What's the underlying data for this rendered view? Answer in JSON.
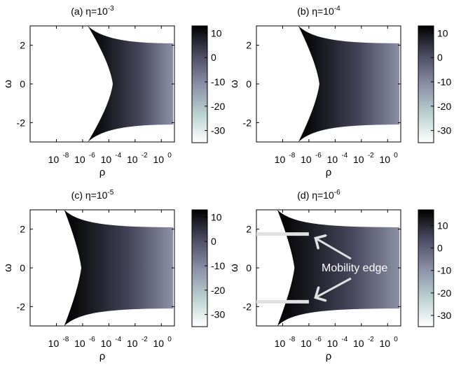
{
  "chart_data": [
    {
      "type": "heatmap",
      "panel_label": "(a)",
      "eta": "10",
      "eta_exp": "-3",
      "xlabel": "ρ",
      "ylabel": "ω",
      "x_scale": "log",
      "xlim": [
        1e-10,
        10
      ],
      "ylim": [
        -3,
        3
      ],
      "x_ticks": [
        {
          "base": "10",
          "exp": "-8",
          "value": 1e-08
        },
        {
          "base": "10",
          "exp": "-6",
          "value": 1e-06
        },
        {
          "base": "10",
          "exp": "-4",
          "value": 0.0001
        },
        {
          "base": "10",
          "exp": "-2",
          "value": 0.01
        },
        {
          "base": "10",
          "exp": "0",
          "value": 1
        }
      ],
      "y_ticks": [
        {
          "label": "2",
          "value": 2
        },
        {
          "label": "0",
          "value": 0
        },
        {
          "label": "-2",
          "value": -2
        }
      ],
      "colorbar": {
        "ticks": [
          {
            "label": "10",
            "value": 10
          },
          {
            "label": "0",
            "value": 0
          },
          {
            "label": "-10",
            "value": -10
          },
          {
            "label": "-20",
            "value": -20
          },
          {
            "label": "-30",
            "value": -30
          }
        ],
        "range": [
          -35,
          13
        ]
      },
      "boundary": {
        "log10_rho_at_omega0": -3.7,
        "log10_rho_at_omega_max": -5.6,
        "rho_end_log10": 0.9,
        "omega_edge": 2.1
      },
      "mobility_edge": null
    },
    {
      "type": "heatmap",
      "panel_label": "(b)",
      "eta": "10",
      "eta_exp": "-4",
      "xlabel": "ρ",
      "ylabel": "ω",
      "x_scale": "log",
      "xlim": [
        1e-10,
        10
      ],
      "ylim": [
        -3,
        3
      ],
      "x_ticks": [
        {
          "base": "10",
          "exp": "-8",
          "value": 1e-08
        },
        {
          "base": "10",
          "exp": "-6",
          "value": 1e-06
        },
        {
          "base": "10",
          "exp": "-4",
          "value": 0.0001
        },
        {
          "base": "10",
          "exp": "-2",
          "value": 0.01
        },
        {
          "base": "10",
          "exp": "0",
          "value": 1
        }
      ],
      "y_ticks": [
        {
          "label": "2",
          "value": 2
        },
        {
          "label": "0",
          "value": 0
        },
        {
          "label": "-2",
          "value": -2
        }
      ],
      "colorbar": {
        "ticks": [
          {
            "label": "10",
            "value": 10
          },
          {
            "label": "0",
            "value": 0
          },
          {
            "label": "-10",
            "value": -10
          },
          {
            "label": "-20",
            "value": -20
          },
          {
            "label": "-30",
            "value": -30
          }
        ],
        "range": [
          -35,
          13
        ]
      },
      "boundary": {
        "log10_rho_at_omega0": -5.2,
        "log10_rho_at_omega_max": -6.8,
        "rho_end_log10": 0.9,
        "omega_edge": 2.1
      },
      "mobility_edge": null
    },
    {
      "type": "heatmap",
      "panel_label": "(c)",
      "eta": "10",
      "eta_exp": "-5",
      "xlabel": "ρ",
      "ylabel": "ω",
      "x_scale": "log",
      "xlim": [
        1e-10,
        10
      ],
      "ylim": [
        -3,
        3
      ],
      "x_ticks": [
        {
          "base": "10",
          "exp": "-8",
          "value": 1e-08
        },
        {
          "base": "10",
          "exp": "-6",
          "value": 1e-06
        },
        {
          "base": "10",
          "exp": "-4",
          "value": 0.0001
        },
        {
          "base": "10",
          "exp": "-2",
          "value": 0.01
        },
        {
          "base": "10",
          "exp": "0",
          "value": 1
        }
      ],
      "y_ticks": [
        {
          "label": "2",
          "value": 2
        },
        {
          "label": "0",
          "value": 0
        },
        {
          "label": "-2",
          "value": -2
        }
      ],
      "colorbar": {
        "ticks": [
          {
            "label": "10",
            "value": 10
          },
          {
            "label": "0",
            "value": 0
          },
          {
            "label": "-10",
            "value": -10
          },
          {
            "label": "-20",
            "value": -20
          },
          {
            "label": "-30",
            "value": -30
          }
        ],
        "range": [
          -35,
          13
        ]
      },
      "boundary": {
        "log10_rho_at_omega0": -6.1,
        "log10_rho_at_omega_max": -7.4,
        "rho_end_log10": 0.9,
        "omega_edge": 2.1
      },
      "mobility_edge": null
    },
    {
      "type": "heatmap",
      "panel_label": "(d)",
      "eta": "10",
      "eta_exp": "-6",
      "xlabel": "ρ",
      "ylabel": "ω",
      "x_scale": "log",
      "xlim": [
        1e-10,
        10
      ],
      "ylim": [
        -3,
        3
      ],
      "x_ticks": [
        {
          "base": "10",
          "exp": "-8",
          "value": 1e-08
        },
        {
          "base": "10",
          "exp": "-6",
          "value": 1e-06
        },
        {
          "base": "10",
          "exp": "-4",
          "value": 0.0001
        },
        {
          "base": "10",
          "exp": "-2",
          "value": 0.01
        },
        {
          "base": "10",
          "exp": "0",
          "value": 1
        }
      ],
      "y_ticks": [
        {
          "label": "2",
          "value": 2
        },
        {
          "label": "0",
          "value": 0
        },
        {
          "label": "-2",
          "value": -2
        }
      ],
      "colorbar": {
        "ticks": [
          {
            "label": "10",
            "value": 10
          },
          {
            "label": "0",
            "value": 0
          },
          {
            "label": "-10",
            "value": -10
          },
          {
            "label": "-20",
            "value": -20
          },
          {
            "label": "-30",
            "value": -30
          }
        ],
        "range": [
          -35,
          17
        ]
      },
      "boundary": {
        "log10_rho_at_omega0": -7.1,
        "log10_rho_at_omega_max": -8.4,
        "rho_end_log10": 0.9,
        "omega_edge": 2.1
      },
      "mobility_edge": {
        "label": "Mobility edge",
        "omega": [
          1.75,
          -1.75
        ],
        "rho_log10_range": [
          -10,
          -6
        ]
      }
    }
  ],
  "colors": {
    "cmap_high": "#000000",
    "cmap_mid": "#4a4a5e",
    "cmap_low_mid": "#8fa0b4",
    "cmap_low": "#ffffff",
    "annotation": "#e0e0e0",
    "annotation_text": "#ffffff"
  }
}
